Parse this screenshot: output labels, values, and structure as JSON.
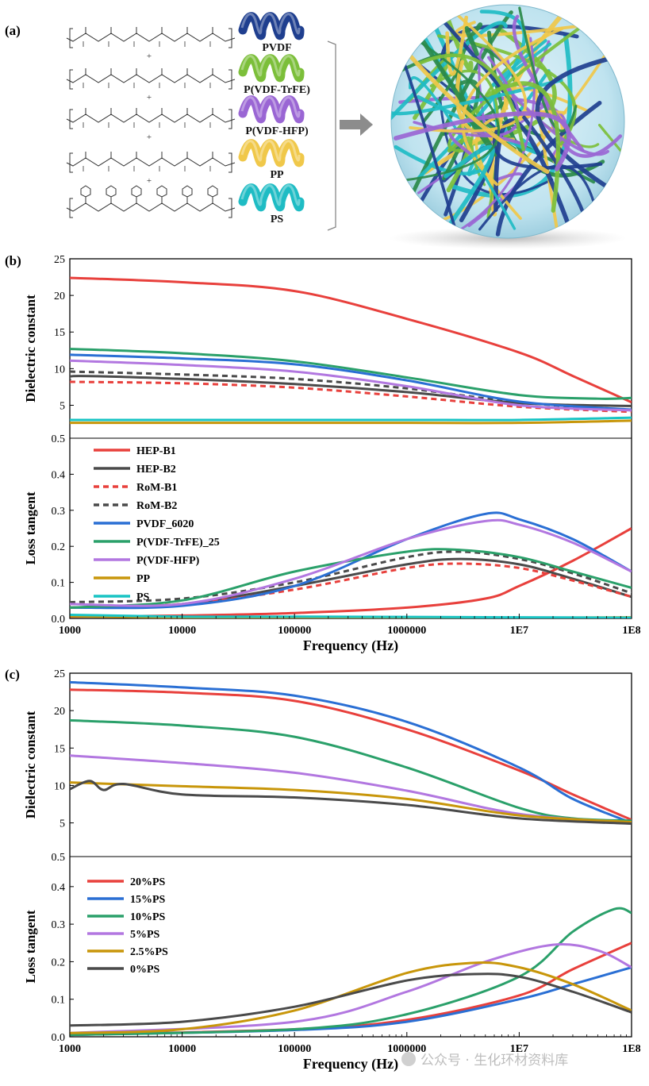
{
  "panel_a": {
    "label": "(a)",
    "polymers": [
      {
        "name": "PVDF",
        "color": "#1f3f8f"
      },
      {
        "name": "P(VDF-TrFE)",
        "color": "#7cbf3a"
      },
      {
        "name": "P(VDF-HFP)",
        "color": "#9a66d4"
      },
      {
        "name": "PP",
        "color": "#f0c84a"
      },
      {
        "name": "PS",
        "color": "#1fbcc4"
      }
    ],
    "plus": "+"
  },
  "watermark": "公众号 · 生化环材资料库",
  "chart_data": [
    {
      "type": "line",
      "panel": "(b)",
      "xlabel": "Frequency (Hz)",
      "xscale": "log",
      "xlim": [
        1000,
        100000000
      ],
      "xticks": [
        "1000",
        "10000",
        "100000",
        "1000000",
        "1E7",
        "1E8"
      ],
      "grid": false,
      "legend_position": "upper-left of lower subplot",
      "subplots": [
        {
          "ylabel": "Dielectric constant",
          "ylim": [
            0.5,
            25
          ],
          "yticks": [
            "0.5",
            "5",
            "10",
            "15",
            "20",
            "25"
          ],
          "series": [
            {
              "name": "HEP-B1",
              "color": "#e8403c",
              "dash": false,
              "x": [
                1000,
                10000,
                100000,
                1000000,
                10000000,
                30000000,
                100000000
              ],
              "y": [
                22.4,
                21.8,
                20.6,
                16.8,
                12.2,
                9.0,
                5.4
              ]
            },
            {
              "name": "HEP-B2",
              "color": "#4a4a4a",
              "dash": false,
              "x": [
                1000,
                1200,
                10000,
                100000,
                1000000,
                10000000,
                100000000
              ],
              "y": [
                8.5,
                9.0,
                8.6,
                7.9,
                6.8,
                5.3,
                4.9
              ]
            },
            {
              "name": "RoM-B1",
              "color": "#e8403c",
              "dash": true,
              "x": [
                1000,
                10000,
                100000,
                1000000,
                10000000,
                100000000
              ],
              "y": [
                8.2,
                8.0,
                7.4,
                6.2,
                4.8,
                4.1
              ]
            },
            {
              "name": "RoM-B2",
              "color": "#4a4a4a",
              "dash": true,
              "x": [
                1000,
                10000,
                100000,
                1000000,
                10000000,
                100000000
              ],
              "y": [
                9.6,
                9.2,
                8.6,
                7.3,
                5.4,
                4.3
              ]
            },
            {
              "name": "PVDF_6020",
              "color": "#2a6fd4",
              "dash": false,
              "x": [
                1000,
                10000,
                100000,
                1000000,
                10000000,
                100000000
              ],
              "y": [
                11.9,
                11.4,
                10.6,
                8.4,
                5.5,
                4.4
              ]
            },
            {
              "name": "P(VDF-TrFE)_25",
              "color": "#2aa06a",
              "dash": false,
              "x": [
                1000,
                10000,
                100000,
                1000000,
                10000000,
                50000000,
                100000000
              ],
              "y": [
                12.7,
                12.1,
                11.0,
                8.8,
                6.4,
                5.9,
                6.0
              ]
            },
            {
              "name": "P(VDF-HFP)",
              "color": "#b277e0",
              "dash": false,
              "x": [
                1000,
                10000,
                100000,
                1000000,
                10000000,
                100000000
              ],
              "y": [
                11.1,
                10.5,
                9.6,
                7.6,
                5.0,
                4.3
              ]
            },
            {
              "name": "PP",
              "color": "#c8960a",
              "dash": false,
              "x": [
                1000,
                10000,
                100000,
                1000000,
                10000000,
                100000000
              ],
              "y": [
                2.6,
                2.6,
                2.6,
                2.6,
                2.6,
                2.9
              ]
            },
            {
              "name": "PS",
              "color": "#18c4c4",
              "dash": false,
              "x": [
                1000,
                10000,
                100000,
                1000000,
                10000000,
                100000000
              ],
              "y": [
                3.0,
                3.0,
                3.0,
                3.0,
                3.0,
                3.3
              ]
            }
          ]
        },
        {
          "ylabel": "Loss tangent",
          "ylim": [
            0.0,
            0.5
          ],
          "yticks": [
            "0.0",
            "0.1",
            "0.2",
            "0.3",
            "0.4"
          ],
          "series": [
            {
              "name": "HEP-B1",
              "color": "#e8403c",
              "dash": false,
              "x": [
                1000,
                10000,
                100000,
                1000000,
                5000000,
                10000000,
                30000000,
                100000000
              ],
              "y": [
                0.005,
                0.008,
                0.015,
                0.03,
                0.055,
                0.09,
                0.16,
                0.25
              ]
            },
            {
              "name": "HEP-B2",
              "color": "#4a4a4a",
              "dash": false,
              "x": [
                1000,
                10000,
                100000,
                1000000,
                3000000,
                10000000,
                30000000,
                100000000
              ],
              "y": [
                0.03,
                0.04,
                0.09,
                0.15,
                0.165,
                0.15,
                0.11,
                0.06
              ]
            },
            {
              "name": "RoM-B1",
              "color": "#e8403c",
              "dash": true,
              "x": [
                1000,
                10000,
                100000,
                1000000,
                3000000,
                10000000,
                30000000,
                100000000
              ],
              "y": [
                0.03,
                0.04,
                0.08,
                0.14,
                0.152,
                0.14,
                0.105,
                0.06
              ]
            },
            {
              "name": "RoM-B2",
              "color": "#4a4a4a",
              "dash": true,
              "x": [
                1000,
                10000,
                100000,
                1000000,
                3000000,
                10000000,
                30000000,
                100000000
              ],
              "y": [
                0.045,
                0.055,
                0.1,
                0.17,
                0.185,
                0.165,
                0.125,
                0.07
              ]
            },
            {
              "name": "PVDF_6020",
              "color": "#2a6fd4",
              "dash": false,
              "x": [
                1000,
                10000,
                100000,
                1000000,
                5000000,
                10000000,
                30000000,
                100000000
              ],
              "y": [
                0.03,
                0.035,
                0.09,
                0.22,
                0.29,
                0.275,
                0.22,
                0.13
              ]
            },
            {
              "name": "P(VDF-TrFE)_25",
              "color": "#2aa06a",
              "dash": false,
              "x": [
                1000,
                10000,
                100000,
                1000000,
                3000000,
                10000000,
                30000000,
                100000000
              ],
              "y": [
                0.03,
                0.05,
                0.13,
                0.185,
                0.19,
                0.17,
                0.13,
                0.085
              ]
            },
            {
              "name": "P(VDF-HFP)",
              "color": "#b277e0",
              "dash": false,
              "x": [
                1000,
                10000,
                100000,
                1000000,
                5000000,
                10000000,
                30000000,
                100000000
              ],
              "y": [
                0.04,
                0.04,
                0.11,
                0.22,
                0.27,
                0.26,
                0.21,
                0.13
              ]
            },
            {
              "name": "PP",
              "color": "#c8960a",
              "dash": false,
              "x": [
                1000,
                10000,
                100000,
                1000000,
                10000000,
                100000000
              ],
              "y": [
                0.006,
                0.003,
                0.002,
                0.002,
                0.002,
                0.003
              ]
            },
            {
              "name": "PS",
              "color": "#18c4c4",
              "dash": false,
              "x": [
                1000,
                10000,
                100000,
                1000000,
                10000000,
                100000000
              ],
              "y": [
                0.01,
                0.005,
                0.005,
                0.004,
                0.003,
                0.002
              ]
            }
          ]
        }
      ]
    },
    {
      "type": "line",
      "panel": "(c)",
      "xlabel": "Frequency (Hz)",
      "xscale": "log",
      "xlim": [
        1000,
        100000000
      ],
      "xticks": [
        "1000",
        "10000",
        "100000",
        "1000000",
        "1E7",
        "1E8"
      ],
      "grid": false,
      "legend_position": "upper-left of lower subplot",
      "subplots": [
        {
          "ylabel": "Dielectric constant",
          "ylim": [
            0.5,
            25
          ],
          "yticks": [
            "0.5",
            "5",
            "10",
            "15",
            "20",
            "25"
          ],
          "series": [
            {
              "name": "20%PS",
              "color": "#e8403c",
              "dash": false,
              "x": [
                1000,
                10000,
                100000,
                1000000,
                10000000,
                30000000,
                100000000
              ],
              "y": [
                22.8,
                22.4,
                21.3,
                17.5,
                12.0,
                8.8,
                5.4
              ]
            },
            {
              "name": "15%PS",
              "color": "#2a6fd4",
              "dash": false,
              "x": [
                1000,
                10000,
                100000,
                1000000,
                10000000,
                30000000,
                100000000
              ],
              "y": [
                23.8,
                23.1,
                22.0,
                18.5,
                12.4,
                8.2,
                5.0
              ]
            },
            {
              "name": "10%PS",
              "color": "#2aa06a",
              "dash": false,
              "x": [
                1000,
                10000,
                100000,
                1000000,
                10000000,
                30000000,
                100000000
              ],
              "y": [
                18.7,
                18.0,
                16.5,
                12.4,
                7.0,
                5.6,
                5.3
              ]
            },
            {
              "name": "5%PS",
              "color": "#b277e0",
              "dash": false,
              "x": [
                1000,
                10000,
                100000,
                1000000,
                10000000,
                100000000
              ],
              "y": [
                14.0,
                13.0,
                11.7,
                9.3,
                6.2,
                5.0
              ]
            },
            {
              "name": "2.5%PS",
              "color": "#c8960a",
              "dash": false,
              "x": [
                1000,
                10000,
                100000,
                1000000,
                10000000,
                100000000
              ],
              "y": [
                10.4,
                9.9,
                9.4,
                8.2,
                6.0,
                5.1
              ]
            },
            {
              "name": "0%PS",
              "color": "#4a4a4a",
              "dash": false,
              "x": [
                1000,
                1500,
                2000,
                3000,
                10000,
                100000,
                1000000,
                10000000,
                100000000
              ],
              "y": [
                9.5,
                10.6,
                9.4,
                10.2,
                8.8,
                8.4,
                7.4,
                5.6,
                4.9
              ]
            }
          ]
        },
        {
          "ylabel": "Loss tangent",
          "ylim": [
            0.0,
            0.48
          ],
          "yticks": [
            "0.0",
            "0.1",
            "0.2",
            "0.3",
            "0.4"
          ],
          "series": [
            {
              "name": "20%PS",
              "color": "#e8403c",
              "dash": false,
              "x": [
                1000,
                100000,
                1000000,
                10000000,
                30000000,
                100000000
              ],
              "y": [
                0.005,
                0.02,
                0.045,
                0.11,
                0.18,
                0.25
              ]
            },
            {
              "name": "15%PS",
              "color": "#2a6fd4",
              "dash": false,
              "x": [
                1000,
                100000,
                1000000,
                10000000,
                30000000,
                100000000
              ],
              "y": [
                0.005,
                0.018,
                0.04,
                0.1,
                0.14,
                0.185
              ]
            },
            {
              "name": "10%PS",
              "color": "#2aa06a",
              "dash": false,
              "x": [
                1000,
                100000,
                1000000,
                10000000,
                30000000,
                70000000,
                100000000
              ],
              "y": [
                0.005,
                0.02,
                0.06,
                0.16,
                0.28,
                0.34,
                0.33
              ]
            },
            {
              "name": "5%PS",
              "color": "#b277e0",
              "dash": false,
              "x": [
                1000,
                100000,
                1000000,
                5000000,
                20000000,
                50000000,
                100000000
              ],
              "y": [
                0.01,
                0.04,
                0.12,
                0.2,
                0.245,
                0.23,
                0.185
              ]
            },
            {
              "name": "2.5%PS",
              "color": "#c8960a",
              "dash": false,
              "x": [
                1000,
                10000,
                100000,
                1000000,
                4000000,
                10000000,
                30000000,
                100000000
              ],
              "y": [
                0.01,
                0.02,
                0.07,
                0.17,
                0.197,
                0.185,
                0.14,
                0.07
              ]
            },
            {
              "name": "0%PS",
              "color": "#4a4a4a",
              "dash": false,
              "x": [
                1000,
                10000,
                100000,
                1000000,
                4000000,
                10000000,
                30000000,
                100000000
              ],
              "y": [
                0.03,
                0.04,
                0.08,
                0.15,
                0.167,
                0.16,
                0.12,
                0.065
              ]
            }
          ]
        }
      ]
    }
  ]
}
